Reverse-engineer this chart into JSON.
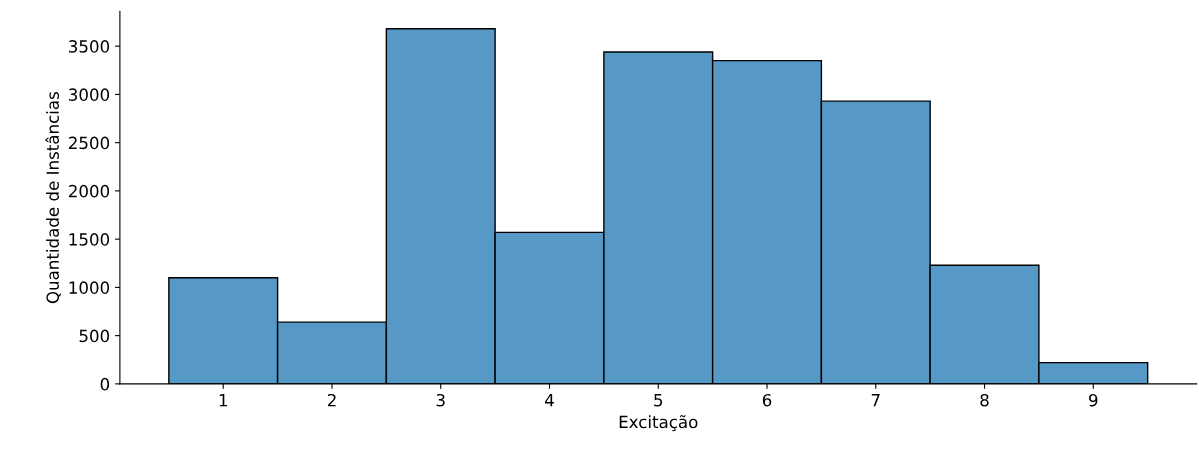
{
  "chart_data": {
    "type": "histogram",
    "xlabel": "Excitação",
    "ylabel": "Quantidade de Instâncias",
    "bins": [
      0.5,
      1.5,
      2.5,
      3.5,
      4.5,
      5.5,
      6.5,
      7.5,
      8.5,
      9.5
    ],
    "values": [
      1100,
      640,
      3680,
      1570,
      3440,
      3350,
      2930,
      1230,
      220
    ],
    "color": "#5799c6",
    "xlim": [
      0.05,
      9.95
    ],
    "xticks": [
      1,
      2,
      3,
      4,
      5,
      6,
      7,
      8,
      9
    ],
    "ylim": [
      0,
      3860
    ],
    "yticks": [
      0,
      500,
      1000,
      1500,
      2000,
      2500,
      3000,
      3500
    ],
    "grid": false
  }
}
